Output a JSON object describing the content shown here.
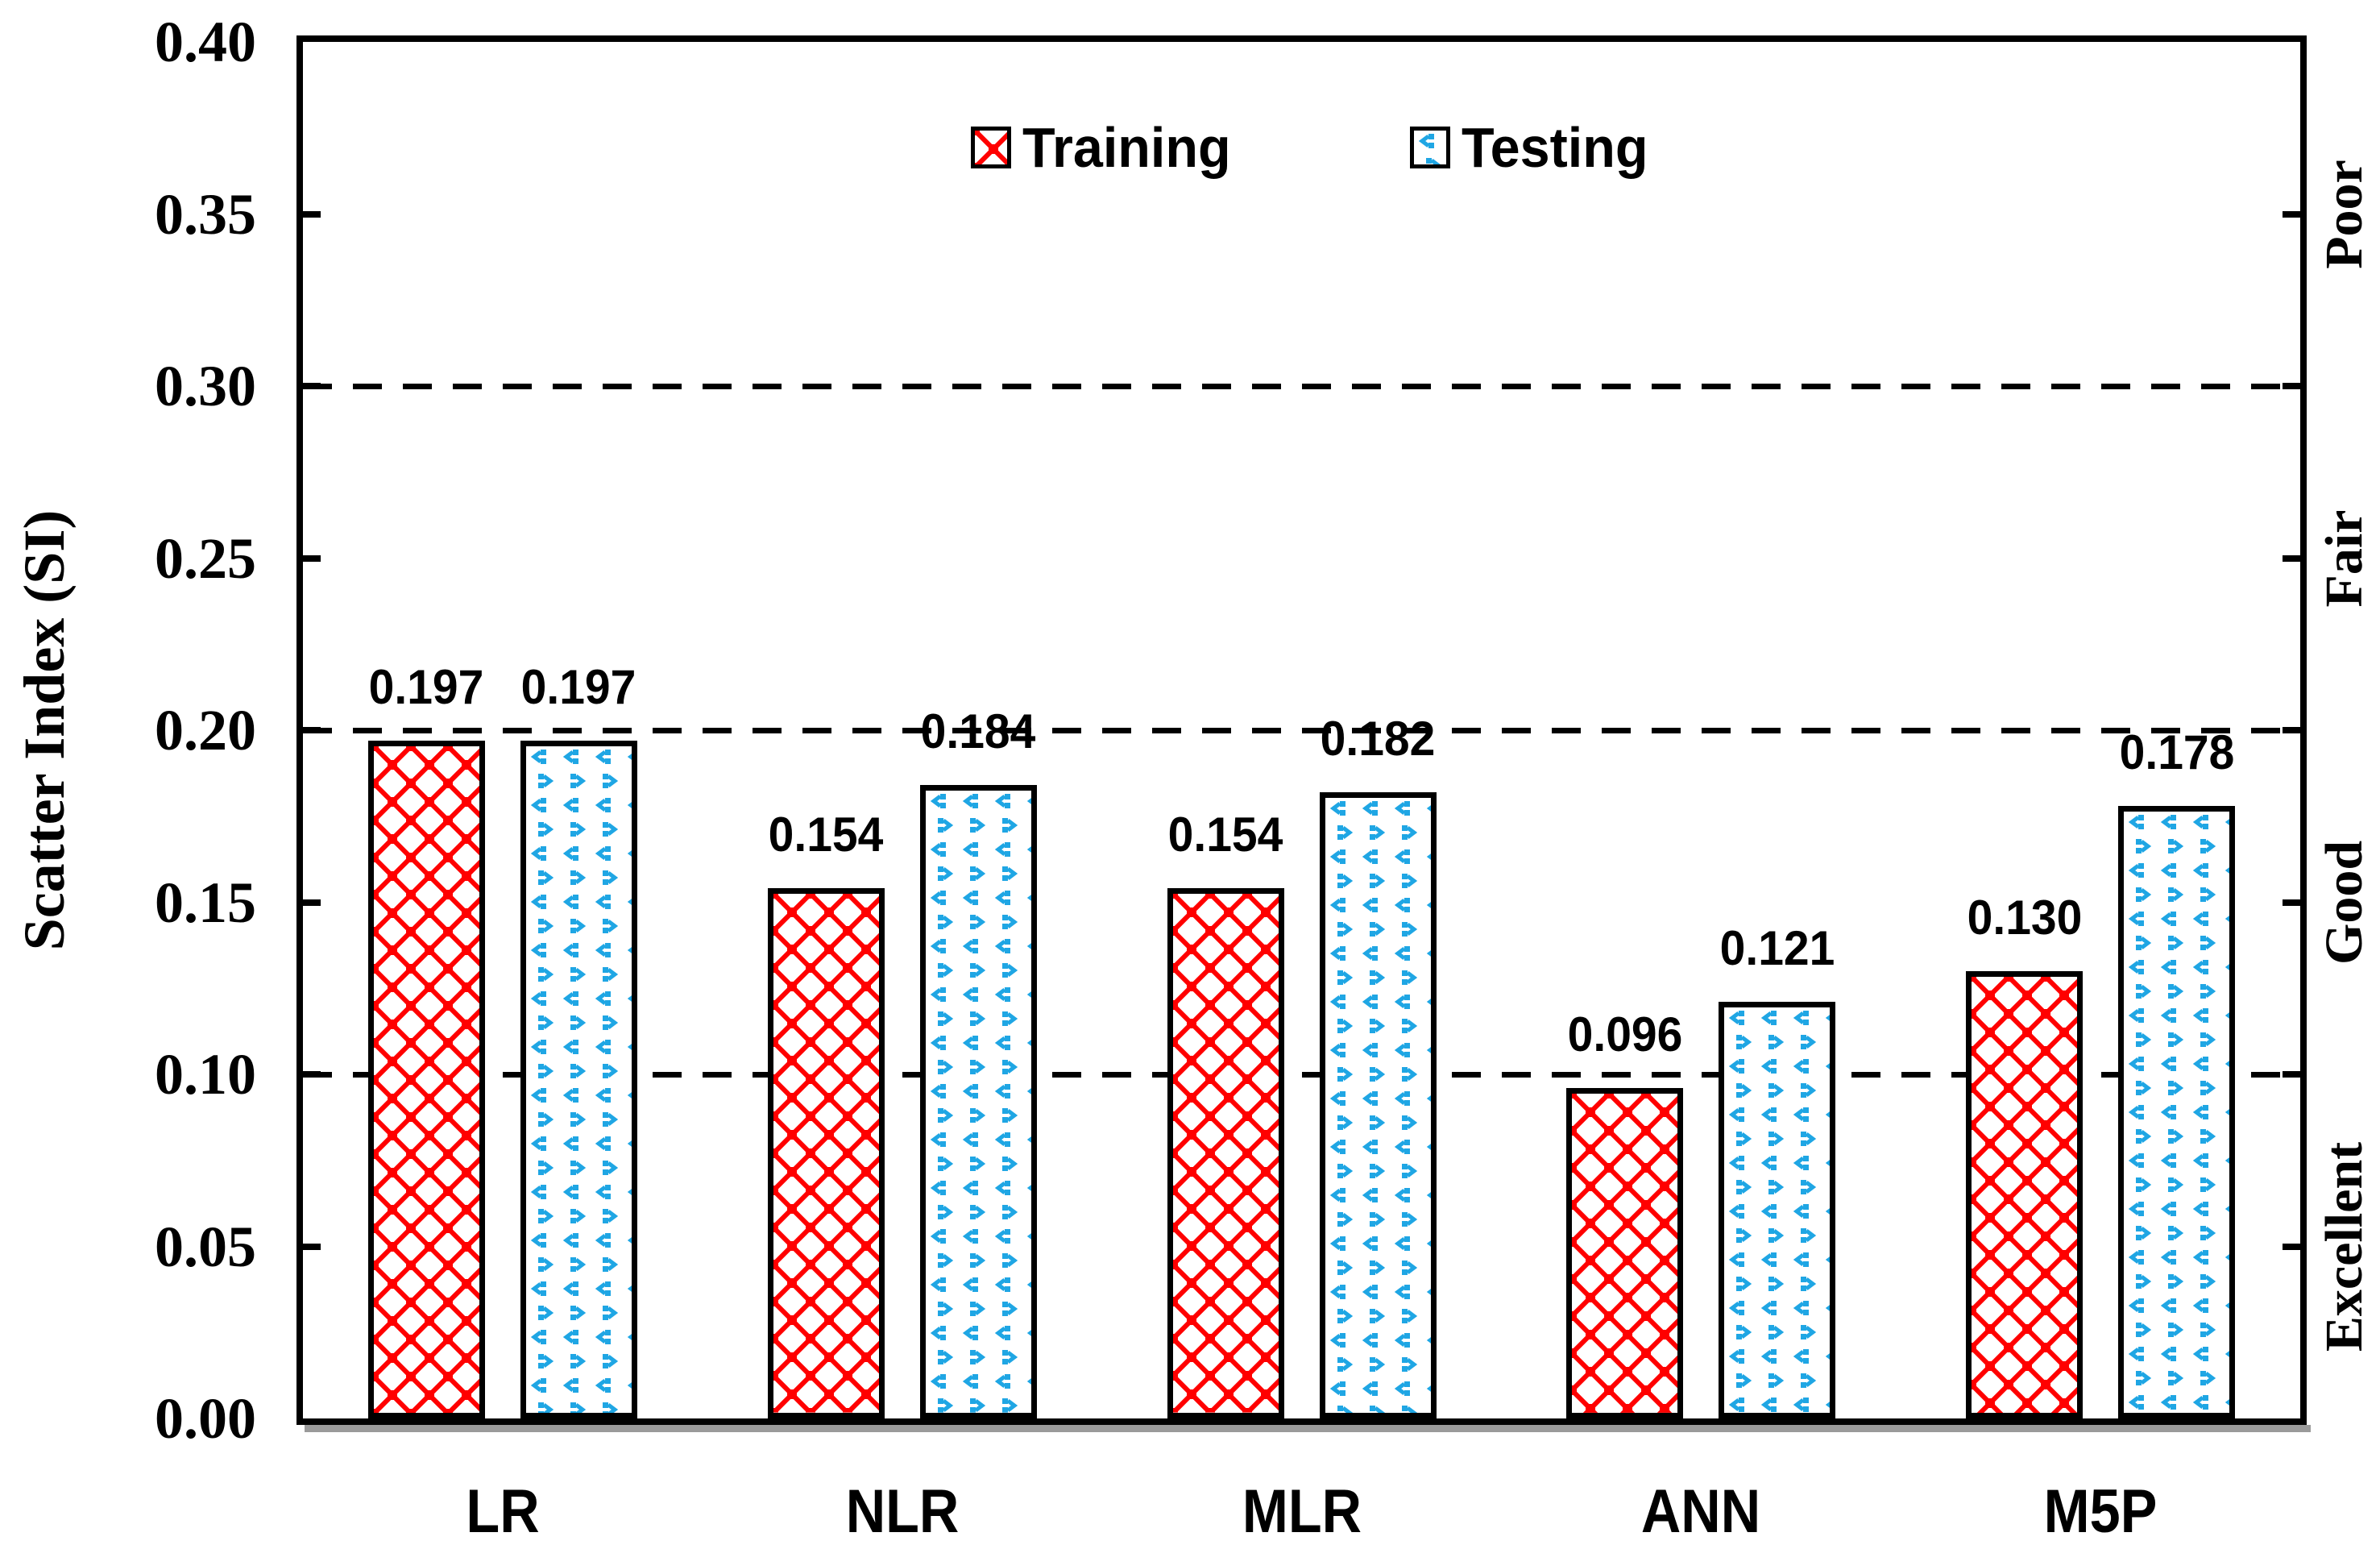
{
  "chart_data": {
    "type": "bar",
    "title": "",
    "xlabel": "",
    "ylabel": "Scatter Index (SI)",
    "categories": [
      "LR",
      "NLR",
      "MLR",
      "ANN",
      "M5P"
    ],
    "series": [
      {
        "name": "Training",
        "color": "#FF0000",
        "pattern": "red-crosshatch",
        "values": [
          0.197,
          0.154,
          0.154,
          0.096,
          0.13
        ]
      },
      {
        "name": "Testing",
        "color": "#1FA6E4",
        "pattern": "blue-diamond-dots",
        "values": [
          0.197,
          0.184,
          0.182,
          0.121,
          0.178
        ]
      }
    ],
    "value_labels": {
      "Training": [
        "0.197",
        "0.154",
        "0.154",
        "0.096",
        "0.130"
      ],
      "Testing": [
        "0.197",
        "0.184",
        "0.182",
        "0.121",
        "0.178"
      ]
    },
    "ylim": [
      0.0,
      0.4
    ],
    "ytick_labels": [
      "0.40",
      "0.35",
      "0.30",
      "0.25",
      "0.20",
      "0.15",
      "0.10",
      "0.05",
      "0.00"
    ],
    "gridlines_at": [
      0.3,
      0.2,
      0.1
    ],
    "grid_style": "dashed",
    "legend_position": "top-center",
    "right_band_labels": [
      {
        "label": "Poor",
        "between": [
          0.3,
          0.4
        ]
      },
      {
        "label": "Fair",
        "between": [
          0.2,
          0.3
        ]
      },
      {
        "label": "Good",
        "between": [
          0.1,
          0.2
        ]
      },
      {
        "label": "Excellent",
        "between": [
          0.0,
          0.1
        ]
      }
    ]
  },
  "legend": {
    "training": "Training",
    "testing": "Testing"
  },
  "colors": {
    "training_red": "#FF0000",
    "testing_blue": "#1FA6E4",
    "axis_black": "#000000",
    "shadow_gray": "#9a9a9a"
  }
}
